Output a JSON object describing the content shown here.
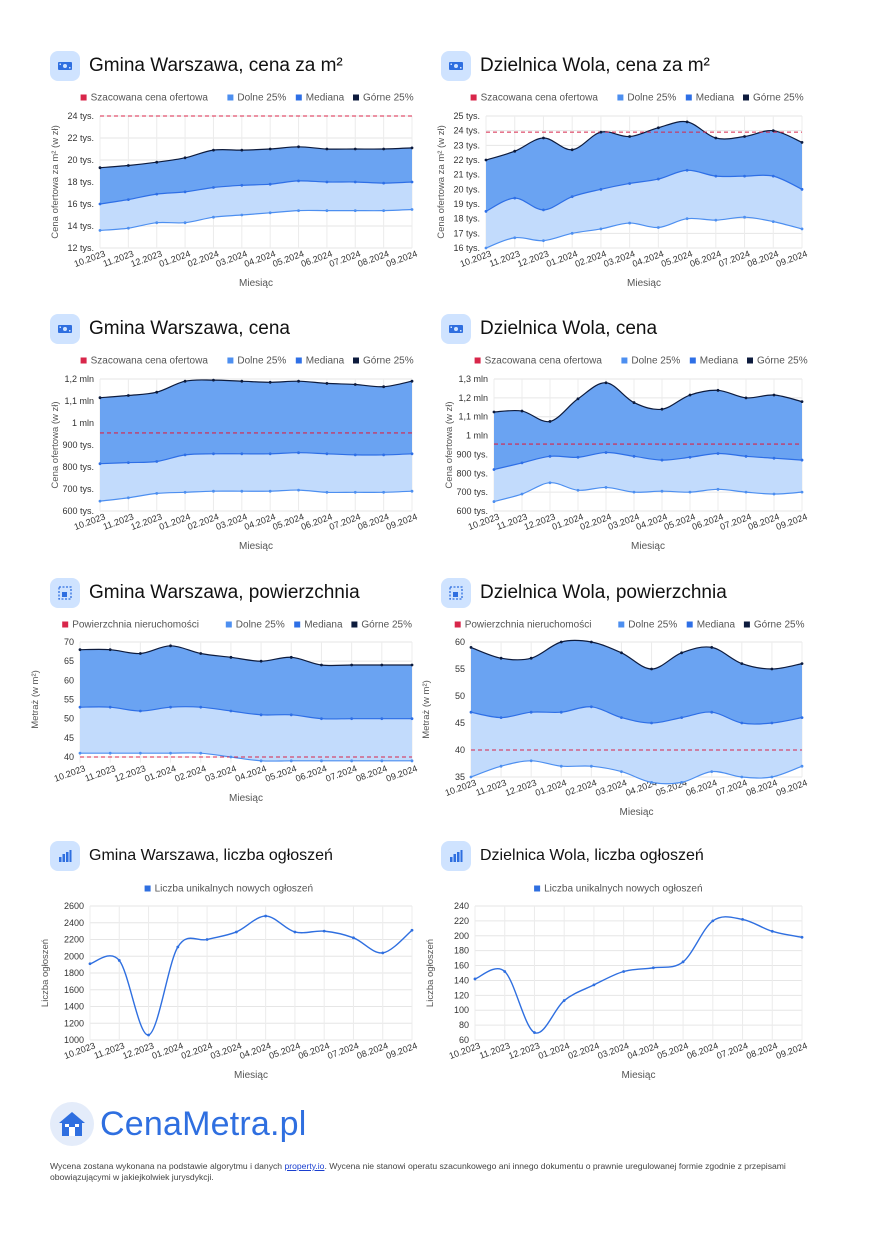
{
  "months": [
    "10.2023",
    "11.2023",
    "12.2023",
    "01.2024",
    "02.2024",
    "03.2024",
    "04.2024",
    "05.2024",
    "06.2024",
    "07.2024",
    "08.2024",
    "09.2024"
  ],
  "colors": {
    "estimate": "#d8264a",
    "lower": "#4d8ff0",
    "median": "#2e6fe6",
    "upper": "#0d1b3d",
    "fill_low": "#c2dbfc",
    "fill_high": "#6aa3f2",
    "line": "#2f6fe0"
  },
  "footer": {
    "logo": "CenaMetra.pl",
    "text_before": "Wycena zostana wykonana na podstawie algorytmu i danych ",
    "link": "property.io",
    "text_after": ". Wycena nie stanowi operatu szacunkowego ani innego dokumentu o prawnie uregulowanej formie zgodnie z przepisami obowiązującymi w jakiejkolwiek jurysdykcji."
  },
  "chart_data": [
    {
      "type": "area",
      "title": "Gmina Warszawa, cena za m²",
      "icon": "banknote-icon",
      "legend": [
        "Szacowana cena ofertowa",
        "Dolne 25%",
        "Mediana",
        "Górne 25%"
      ],
      "ylabel": "Cena ofertowa za m² (w zł)",
      "xlabel": "Miesiąc",
      "ymin": 12,
      "ymax": 24,
      "yticks": [
        {
          "v": 12,
          "l": "12 tys."
        },
        {
          "v": 14,
          "l": "14 tys."
        },
        {
          "v": 16,
          "l": "16 tys."
        },
        {
          "v": 18,
          "l": "18 tys."
        },
        {
          "v": 20,
          "l": "20 tys."
        },
        {
          "v": 22,
          "l": "22 tys."
        },
        {
          "v": 24,
          "l": "24 tys."
        }
      ],
      "estimate": 24,
      "lower": [
        13.6,
        13.8,
        14.3,
        14.3,
        14.8,
        15.0,
        15.2,
        15.4,
        15.4,
        15.4,
        15.4,
        15.5
      ],
      "median": [
        16.0,
        16.4,
        16.9,
        17.1,
        17.5,
        17.7,
        17.8,
        18.1,
        18.0,
        18.0,
        17.9,
        18.0
      ],
      "upper": [
        19.3,
        19.5,
        19.8,
        20.2,
        20.9,
        20.9,
        21.0,
        21.2,
        21.0,
        21.0,
        21.0,
        21.1
      ]
    },
    {
      "type": "area",
      "title": "Dzielnica Wola, cena za m²",
      "icon": "banknote-icon",
      "legend": [
        "Szacowana cena ofertowa",
        "Dolne 25%",
        "Mediana",
        "Górne 25%"
      ],
      "ylabel": "Cena ofertowa za m² (w zł)",
      "xlabel": "Miesiąc",
      "ymin": 16,
      "ymax": 25,
      "yticks": [
        {
          "v": 16,
          "l": "16 tys."
        },
        {
          "v": 17,
          "l": "17 tys."
        },
        {
          "v": 18,
          "l": "18 tys."
        },
        {
          "v": 19,
          "l": "19 tys."
        },
        {
          "v": 20,
          "l": "20 tys."
        },
        {
          "v": 21,
          "l": "21 tys."
        },
        {
          "v": 22,
          "l": "22 tys."
        },
        {
          "v": 23,
          "l": "23 tys."
        },
        {
          "v": 24,
          "l": "24 tys."
        },
        {
          "v": 25,
          "l": "25 tys."
        }
      ],
      "estimate": 23.9,
      "lower": [
        16.0,
        16.7,
        16.5,
        17.0,
        17.3,
        17.7,
        17.4,
        18.0,
        17.9,
        18.1,
        17.8,
        17.3
      ],
      "median": [
        18.5,
        19.4,
        18.6,
        19.5,
        20.0,
        20.4,
        20.7,
        21.3,
        20.9,
        20.9,
        20.9,
        20.0
      ],
      "upper": [
        22.0,
        22.6,
        23.5,
        22.7,
        23.9,
        23.6,
        24.2,
        24.6,
        23.5,
        23.6,
        24.0,
        23.2
      ]
    },
    {
      "type": "area",
      "title": "Gmina Warszawa, cena",
      "icon": "banknote-icon",
      "legend": [
        "Szacowana cena ofertowa",
        "Dolne 25%",
        "Mediana",
        "Górne 25%"
      ],
      "ylabel": "Cena ofertowa (w zł)",
      "xlabel": "Miesiąc",
      "ymin": 600,
      "ymax": 1200,
      "yticks": [
        {
          "v": 600,
          "l": "600 tys."
        },
        {
          "v": 700,
          "l": "700 tys."
        },
        {
          "v": 800,
          "l": "800 tys."
        },
        {
          "v": 900,
          "l": "900 tys."
        },
        {
          "v": 1000,
          "l": "1 mln"
        },
        {
          "v": 1100,
          "l": "1,1 mln"
        },
        {
          "v": 1200,
          "l": "1,2 mln"
        }
      ],
      "estimate": 955,
      "lower": [
        645,
        660,
        680,
        685,
        690,
        690,
        690,
        695,
        685,
        685,
        685,
        690
      ],
      "median": [
        815,
        820,
        825,
        855,
        860,
        860,
        860,
        865,
        860,
        855,
        855,
        860
      ],
      "upper": [
        1115,
        1125,
        1140,
        1190,
        1195,
        1190,
        1185,
        1190,
        1180,
        1175,
        1165,
        1190
      ]
    },
    {
      "type": "area",
      "title": "Dzielnica Wola, cena",
      "icon": "banknote-icon",
      "legend": [
        "Szacowana cena ofertowa",
        "Dolne 25%",
        "Mediana",
        "Górne 25%"
      ],
      "ylabel": "Cena ofertowa (w zł)",
      "xlabel": "Miesiąc",
      "ymin": 600,
      "ymax": 1300,
      "yticks": [
        {
          "v": 600,
          "l": "600 tys."
        },
        {
          "v": 700,
          "l": "700 tys."
        },
        {
          "v": 800,
          "l": "800 tys."
        },
        {
          "v": 900,
          "l": "900 tys."
        },
        {
          "v": 1000,
          "l": "1 mln"
        },
        {
          "v": 1100,
          "l": "1,1 mln"
        },
        {
          "v": 1200,
          "l": "1,2 mln"
        },
        {
          "v": 1300,
          "l": "1,3 mln"
        }
      ],
      "estimate": 955,
      "lower": [
        650,
        690,
        750,
        710,
        725,
        700,
        705,
        700,
        715,
        700,
        690,
        700
      ],
      "median": [
        820,
        855,
        890,
        885,
        910,
        890,
        870,
        885,
        905,
        890,
        880,
        870
      ],
      "upper": [
        1125,
        1130,
        1075,
        1195,
        1280,
        1175,
        1140,
        1215,
        1240,
        1200,
        1215,
        1180
      ]
    },
    {
      "type": "area",
      "title": "Gmina Warszawa, powierzchnia",
      "icon": "area-icon",
      "legend": [
        "Powierzchnia nieruchomości",
        "Dolne 25%",
        "Mediana",
        "Górne 25%"
      ],
      "ylabel": "Metraż (w m²)",
      "xlabel": "Miesiąc",
      "ymin": 40,
      "ymax": 70,
      "yticks": [
        {
          "v": 40,
          "l": "40"
        },
        {
          "v": 45,
          "l": "45"
        },
        {
          "v": 50,
          "l": "50"
        },
        {
          "v": 55,
          "l": "55"
        },
        {
          "v": 60,
          "l": "60"
        },
        {
          "v": 65,
          "l": "65"
        },
        {
          "v": 70,
          "l": "70"
        }
      ],
      "ext_bottom": 1.5,
      "estimate": 40,
      "lower": [
        41,
        41,
        41,
        41,
        41,
        40,
        39,
        39,
        39,
        39,
        39,
        39
      ],
      "median": [
        53,
        53,
        52,
        53,
        53,
        52,
        51,
        51,
        50,
        50,
        50,
        50
      ],
      "upper": [
        68,
        68,
        67,
        69,
        67,
        66,
        65,
        66,
        64,
        64,
        64,
        64
      ]
    },
    {
      "type": "area",
      "title": "Dzielnica Wola, powierzchnia",
      "icon": "area-icon",
      "legend": [
        "Powierzchnia nieruchomości",
        "Dolne 25%",
        "Mediana",
        "Górne 25%"
      ],
      "ylabel": "Metraż (w m²)",
      "xlabel": "Miesiąc",
      "ymin": 35,
      "ymax": 60,
      "yticks": [
        {
          "v": 35,
          "l": "35"
        },
        {
          "v": 40,
          "l": "40"
        },
        {
          "v": 45,
          "l": "45"
        },
        {
          "v": 50,
          "l": "50"
        },
        {
          "v": 55,
          "l": "55"
        },
        {
          "v": 60,
          "l": "60"
        }
      ],
      "estimate": 40,
      "lower": [
        35,
        37,
        38,
        37,
        37,
        36,
        34,
        34,
        36,
        35,
        35,
        37
      ],
      "median": [
        47,
        46,
        47,
        47,
        48,
        46,
        45,
        46,
        47,
        45,
        45,
        46
      ],
      "upper": [
        59,
        57,
        57,
        60,
        60,
        58,
        55,
        58,
        59,
        56,
        55,
        56
      ]
    },
    {
      "type": "line",
      "title": "Gmina Warszawa, liczba ogłoszeń",
      "icon": "bar-chart-icon",
      "legend": [
        "Liczba unikalnych nowych ogłoszeń"
      ],
      "ylabel": "Liczba ogłoszeń",
      "xlabel": "Miesiąc",
      "ymin": 1000,
      "ymax": 2600,
      "yticks": [
        {
          "v": 1000,
          "l": "1000"
        },
        {
          "v": 1200,
          "l": "1200"
        },
        {
          "v": 1400,
          "l": "1400"
        },
        {
          "v": 1600,
          "l": "1600"
        },
        {
          "v": 1800,
          "l": "1800"
        },
        {
          "v": 2000,
          "l": "2000"
        },
        {
          "v": 2200,
          "l": "2200"
        },
        {
          "v": 2400,
          "l": "2400"
        },
        {
          "v": 2600,
          "l": "2600"
        }
      ],
      "values": [
        1910,
        1950,
        1060,
        2110,
        2200,
        2290,
        2480,
        2290,
        2300,
        2220,
        2040,
        2310
      ]
    },
    {
      "type": "line",
      "title": "Dzielnica Wola, liczba ogłoszeń",
      "icon": "bar-chart-icon",
      "legend": [
        "Liczba unikalnych nowych ogłoszeń"
      ],
      "ylabel": "Liczba ogłoszeń",
      "xlabel": "Miesiąc",
      "ymin": 60,
      "ymax": 240,
      "yticks": [
        {
          "v": 60,
          "l": "60"
        },
        {
          "v": 80,
          "l": "80"
        },
        {
          "v": 100,
          "l": "100"
        },
        {
          "v": 120,
          "l": "120"
        },
        {
          "v": 140,
          "l": "140"
        },
        {
          "v": 160,
          "l": "160"
        },
        {
          "v": 180,
          "l": "180"
        },
        {
          "v": 200,
          "l": "200"
        },
        {
          "v": 220,
          "l": "220"
        },
        {
          "v": 240,
          "l": "240"
        }
      ],
      "values": [
        142,
        152,
        70,
        113,
        134,
        152,
        157,
        165,
        220,
        222,
        206,
        198
      ]
    }
  ]
}
